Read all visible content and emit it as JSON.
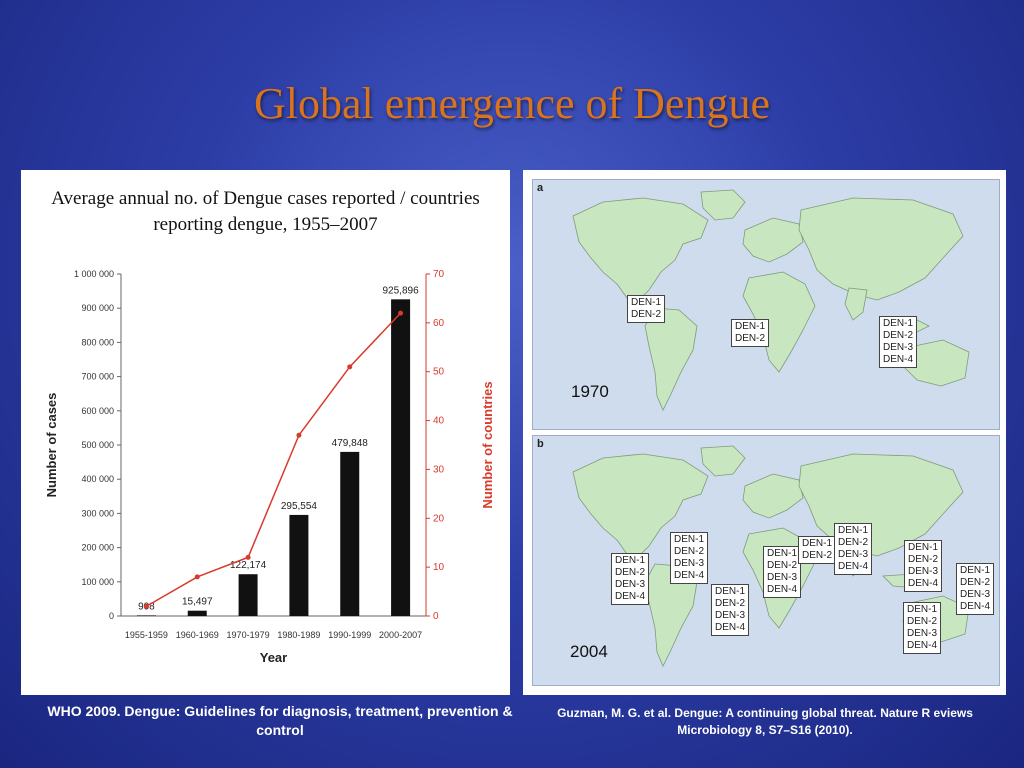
{
  "slide": {
    "title": "Global emergence of Dengue"
  },
  "chart_caption": "Average annual no. of Dengue cases reported / countries reporting dengue, 1955–2007",
  "chart_data": {
    "type": "bar",
    "categories": [
      "1955-1959",
      "1960-1969",
      "1970-1979",
      "1980-1989",
      "1990-1999",
      "2000-2007"
    ],
    "series": [
      {
        "values": [
          908,
          15497,
          122174,
          295554,
          479848,
          925896
        ],
        "axis": "left",
        "color": "#111111"
      },
      {
        "values": [
          2,
          8,
          12,
          37,
          51,
          62
        ],
        "axis": "right",
        "type": "line",
        "color": "#d93a2b"
      }
    ],
    "bar_labels": [
      "908",
      "15,497",
      "122,174",
      "295,554",
      "479,848",
      "925,896"
    ],
    "xlabel": "Year",
    "ylabel": "Number of cases",
    "y2label": "Number of countries",
    "ylim": [
      0,
      1000000
    ],
    "y2lim": [
      0,
      70
    ],
    "yticks": [
      "0",
      "100 000",
      "200 000",
      "300 000",
      "400 000",
      "500 000",
      "600 000",
      "700 000",
      "800 000",
      "900 000",
      "1 000 000"
    ],
    "y2ticks": [
      "0",
      "10",
      "20",
      "30",
      "40",
      "50",
      "60",
      "70"
    ],
    "y2_color": "#d93a2b",
    "grid": false
  },
  "maps": {
    "a_letter": "a",
    "b_letter": "b",
    "a_year": "1970",
    "b_year": "2004",
    "a_boxes": [
      [
        "DEN-1",
        "DEN-2"
      ],
      [
        "DEN-1",
        "DEN-2"
      ],
      [
        "DEN-1",
        "DEN-2",
        "DEN-3",
        "DEN-4"
      ]
    ],
    "b_boxes": [
      [
        "DEN-1",
        "DEN-2",
        "DEN-3",
        "DEN-4"
      ],
      [
        "DEN-1",
        "DEN-2",
        "DEN-3",
        "DEN-4"
      ],
      [
        "DEN-1",
        "DEN-2",
        "DEN-3",
        "DEN-4"
      ],
      [
        "DEN-1",
        "DEN-2",
        "DEN-3",
        "DEN-4"
      ],
      [
        "DEN-1",
        "DEN-2"
      ],
      [
        "DEN-1",
        "DEN-2",
        "DEN-3",
        "DEN-4"
      ],
      [
        "DEN-1",
        "DEN-2",
        "DEN-3",
        "DEN-4"
      ],
      [
        "DEN-1",
        "DEN-2",
        "DEN-3",
        "DEN-4"
      ],
      [
        "DEN-1",
        "DEN-2",
        "DEN-3",
        "DEN-4"
      ]
    ],
    "land_color": "#c8e6c0",
    "water_color": "#cfdced"
  },
  "footnotes": {
    "left": "WHO 2009. Dengue: Guidelines for diagnosis, treatment, prevention & control",
    "right": "Guzman, M. G. et al. Dengue: A continuing global threat. Nature R eviews Microbiology 8, S7–S16 (2010)."
  }
}
